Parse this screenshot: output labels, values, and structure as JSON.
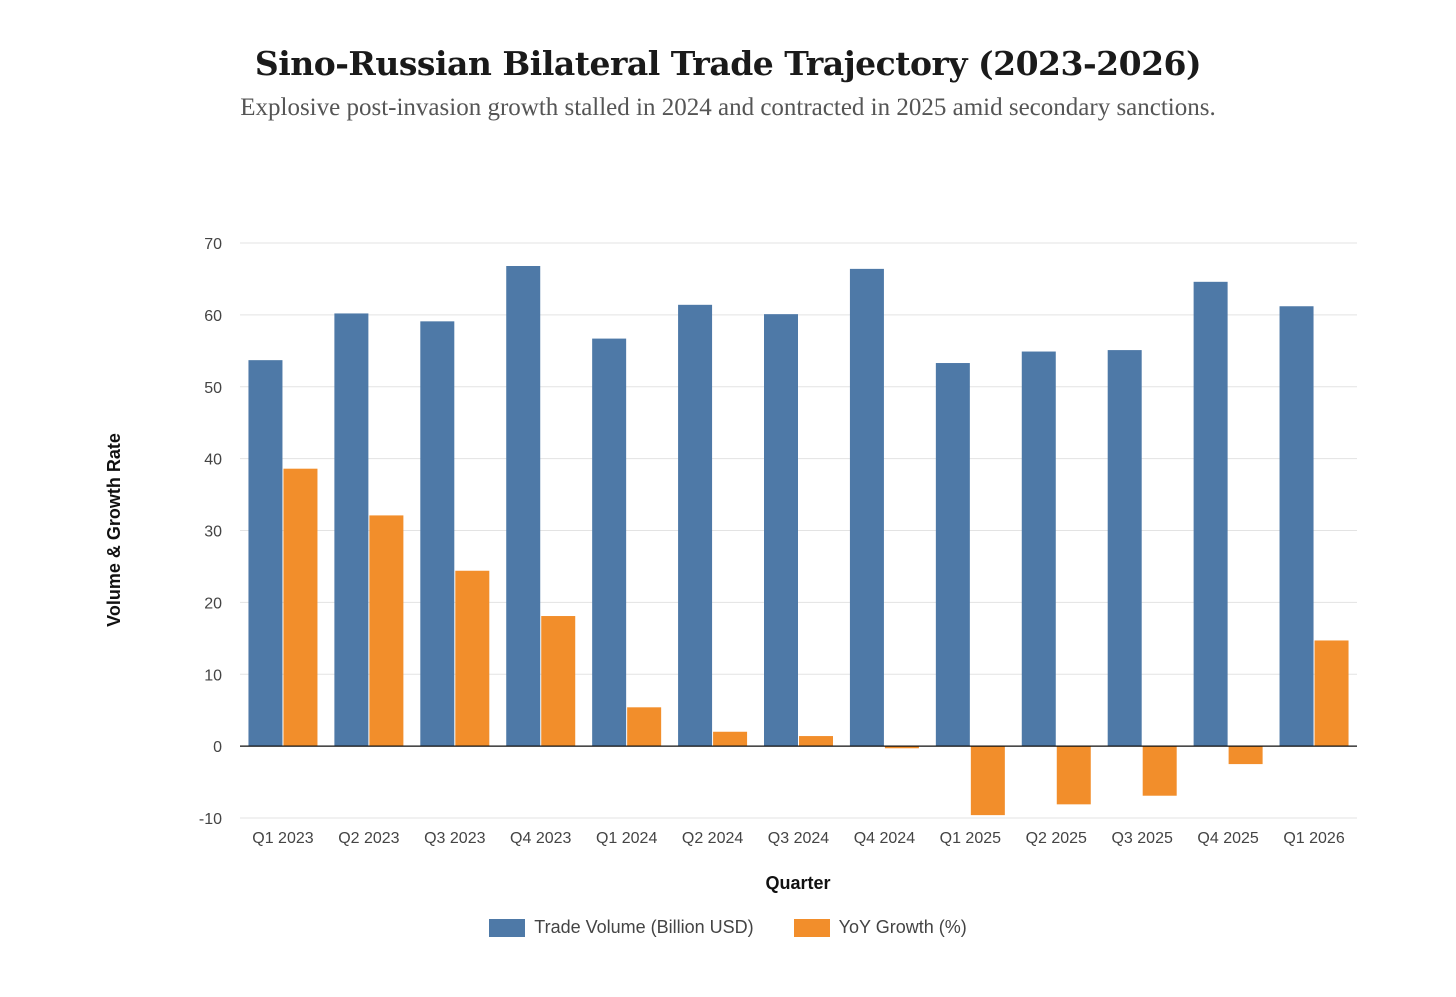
{
  "title": "Sino-Russian Bilateral Trade Trajectory (2023-2026)",
  "subtitle": "Explosive post-invasion growth stalled in 2024 and contracted in 2025 amid secondary sanctions.",
  "colors": {
    "volume": "#4e79a7",
    "growth": "#f28e2b",
    "grid": "#e3e3e3",
    "zero_line": "#111111"
  },
  "legend": [
    {
      "label": "Trade Volume (Billion USD)",
      "color": "#4e79a7"
    },
    {
      "label": "YoY Growth (%)",
      "color": "#f28e2b"
    }
  ],
  "chart_data": {
    "type": "bar",
    "categories": [
      "Q1 2023",
      "Q2 2023",
      "Q3 2023",
      "Q4 2023",
      "Q1 2024",
      "Q2 2024",
      "Q3 2024",
      "Q4 2024",
      "Q1 2025",
      "Q2 2025",
      "Q3 2025",
      "Q4 2025",
      "Q1 2026"
    ],
    "series": [
      {
        "name": "Trade Volume (Billion USD)",
        "values": [
          53.7,
          60.2,
          59.1,
          66.8,
          56.7,
          61.4,
          60.1,
          66.4,
          53.3,
          54.9,
          55.1,
          64.6,
          61.2
        ]
      },
      {
        "name": "YoY Growth (%)",
        "values": [
          38.6,
          32.1,
          24.4,
          18.1,
          5.4,
          2.0,
          1.4,
          -0.3,
          -9.6,
          -8.1,
          -6.9,
          -2.5,
          14.7
        ]
      }
    ],
    "xlabel": "Quarter",
    "ylabel": "Volume & Growth Rate",
    "ylim": [
      -10,
      70
    ],
    "yticks": [
      -10,
      0,
      10,
      20,
      30,
      40,
      50,
      60,
      70
    ],
    "grid": true,
    "legend_position": "bottom"
  }
}
